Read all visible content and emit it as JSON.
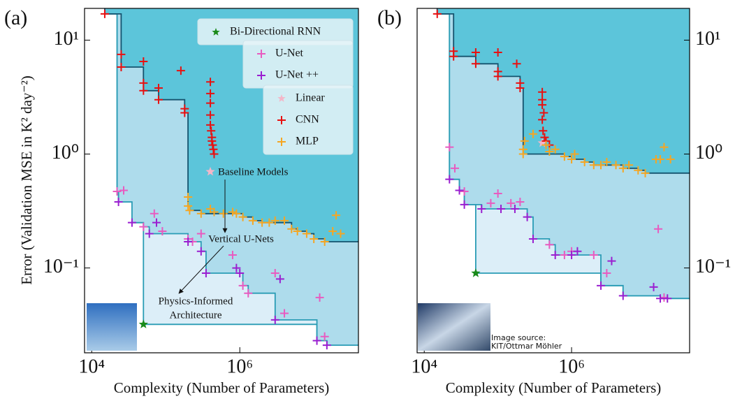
{
  "chart_data": [
    {
      "type": "scatter",
      "title": "(a)",
      "x_label": "Complexity (Number of Parameters)",
      "y_label": "Error (Validation MSE in K² day⁻²)",
      "xlog": true,
      "ylog": true,
      "xlim": [
        8000,
        40000000
      ],
      "ylim": [
        0.018,
        19
      ],
      "xticks": [
        {
          "value": 10000,
          "label": "10⁴"
        },
        {
          "value": 1000000,
          "label": "10⁶"
        }
      ],
      "yticks": [
        {
          "value": 0.1,
          "label": "10⁻¹"
        },
        {
          "value": 1,
          "label": "10⁰"
        },
        {
          "value": 10,
          "label": "10¹"
        }
      ],
      "legend": true,
      "annotations": [
        "Baseline Models",
        "Vertical U-Nets",
        "Physics-Informed",
        "Architecture"
      ],
      "series": [
        {
          "name": "Bi-Directional RNN",
          "color": "#1a8a1a",
          "marker": "star",
          "x": [
            50000
          ],
          "values": [
            0.032
          ]
        },
        {
          "name": "U-Net",
          "color": "#e85bc0",
          "marker": "plus",
          "x": [
            22000,
            27000,
            50000,
            70000,
            90000,
            200000,
            230000,
            300000,
            800000,
            1100000,
            1300000,
            3000000,
            4000000,
            12000000,
            14000000
          ],
          "values": [
            0.47,
            0.48,
            0.23,
            0.3,
            0.21,
            0.18,
            0.17,
            0.2,
            0.13,
            0.07,
            0.06,
            0.09,
            0.04,
            0.055,
            0.025
          ]
        },
        {
          "name": "U-Net ++",
          "color": "#9a1fd0",
          "marker": "plus",
          "x": [
            23000,
            35000,
            60000,
            75000,
            200000,
            300000,
            350000,
            900000,
            1000000,
            3000000,
            3500000,
            11000000,
            15000000
          ],
          "values": [
            0.38,
            0.25,
            0.2,
            0.25,
            0.17,
            0.14,
            0.09,
            0.1,
            0.09,
            0.035,
            0.08,
            0.023,
            0.021
          ]
        },
        {
          "name": "Linear",
          "color": "#f4b6c8",
          "marker": "star",
          "x": [
            400000
          ],
          "values": [
            0.7
          ]
        },
        {
          "name": "CNN",
          "color": "#e81010",
          "marker": "plus",
          "x": [
            15000,
            25000,
            25000,
            50000,
            50000,
            50000,
            80000,
            80000,
            160000,
            180000,
            180000,
            400000,
            400000,
            400000,
            400000,
            400000,
            410000,
            420000,
            430000,
            440000,
            450000,
            420000
          ],
          "values": [
            17,
            7.5,
            5.8,
            6.5,
            4.2,
            3.6,
            3.8,
            3.0,
            5.4,
            2.5,
            2.3,
            4.3,
            3.4,
            2.8,
            2.2,
            1.8,
            1.6,
            1.4,
            1.2,
            1.1,
            1.0,
            1.3
          ]
        },
        {
          "name": "MLP",
          "color": "#f5a623",
          "marker": "plus",
          "x": [
            200000,
            200000,
            210000,
            300000,
            400000,
            450000,
            600000,
            800000,
            900000,
            1100000,
            1500000,
            2000000,
            2500000,
            3000000,
            4000000,
            5000000,
            6000000,
            8000000,
            10000000,
            14000000,
            18000000,
            20000000,
            23000000
          ],
          "values": [
            0.42,
            0.35,
            0.32,
            0.3,
            0.33,
            0.31,
            0.3,
            0.31,
            0.3,
            0.28,
            0.26,
            0.25,
            0.25,
            0.26,
            0.26,
            0.22,
            0.21,
            0.2,
            0.18,
            0.17,
            0.21,
            0.29,
            0.2
          ]
        }
      ]
    },
    {
      "type": "scatter",
      "title": "(b)",
      "x_label": "Complexity (Number of Parameters)",
      "xlog": true,
      "ylog": true,
      "xlim": [
        8000,
        40000000
      ],
      "ylim": [
        0.018,
        19
      ],
      "xticks": [
        {
          "value": 10000,
          "label": "10⁴"
        },
        {
          "value": 1000000,
          "label": "10⁶"
        }
      ],
      "yticks": [
        {
          "value": 0.1,
          "label": "10⁻¹"
        },
        {
          "value": 1,
          "label": "10⁰"
        },
        {
          "value": 10,
          "label": "10¹"
        }
      ],
      "legend": false,
      "annotations": [
        "Image source:",
        "KIT/Ottmar Möhler"
      ],
      "series": [
        {
          "name": "Bi-Directional RNN",
          "color": "#1a8a1a",
          "marker": "star",
          "x": [
            50000
          ],
          "values": [
            0.09
          ]
        },
        {
          "name": "U-Net",
          "color": "#e85bc0",
          "marker": "plus",
          "x": [
            22000,
            26000,
            35000,
            80000,
            100000,
            150000,
            200000,
            500000,
            800000,
            1000000,
            2000000,
            3000000,
            15000000,
            18000000
          ],
          "values": [
            1.15,
            0.75,
            0.47,
            0.37,
            0.45,
            0.37,
            0.38,
            0.16,
            0.13,
            0.14,
            0.13,
            0.09,
            0.22,
            0.055
          ]
        },
        {
          "name": "U-Net ++",
          "color": "#9a1fd0",
          "marker": "plus",
          "x": [
            22000,
            30000,
            35000,
            60000,
            110000,
            170000,
            250000,
            300000,
            600000,
            1000000,
            1200000,
            2500000,
            3500000,
            5000000,
            13000000,
            16000000,
            20000000
          ],
          "values": [
            0.6,
            0.48,
            0.36,
            0.33,
            0.33,
            0.33,
            0.28,
            0.18,
            0.13,
            0.13,
            0.14,
            0.07,
            0.115,
            0.057,
            0.068,
            0.054,
            0.054
          ]
        },
        {
          "name": "Linear",
          "color": "#f4b6c8",
          "marker": "star",
          "x": [
            400000
          ],
          "values": [
            1.25
          ]
        },
        {
          "name": "CNN",
          "color": "#e81010",
          "marker": "plus",
          "x": [
            15000,
            25000,
            25000,
            50000,
            50000,
            100000,
            100000,
            100000,
            180000,
            200000,
            200000,
            400000,
            400000,
            400000,
            420000,
            400000,
            410000,
            430000,
            450000,
            500000
          ],
          "values": [
            17,
            8,
            7.2,
            7.8,
            6.2,
            7.8,
            5.3,
            4.8,
            6.2,
            4.2,
            3.8,
            3.5,
            3.0,
            2.7,
            2.3,
            2.0,
            1.6,
            1.4,
            1.3,
            1.2
          ]
        },
        {
          "name": "MLP",
          "color": "#f5a623",
          "marker": "plus",
          "x": [
            220000,
            220000,
            230000,
            300000,
            450000,
            500000,
            600000,
            800000,
            1000000,
            1100000,
            1500000,
            2000000,
            2500000,
            3000000,
            4000000,
            5000000,
            6000000,
            8000000,
            10000000,
            14000000,
            16000000,
            18000000,
            22000000
          ],
          "values": [
            1.1,
            1.0,
            1.3,
            1.5,
            1.2,
            1.05,
            1.1,
            0.95,
            0.9,
            1.0,
            0.85,
            0.8,
            0.8,
            0.85,
            0.8,
            0.75,
            0.8,
            0.72,
            0.68,
            0.9,
            0.9,
            1.15,
            0.9
          ]
        }
      ]
    }
  ]
}
